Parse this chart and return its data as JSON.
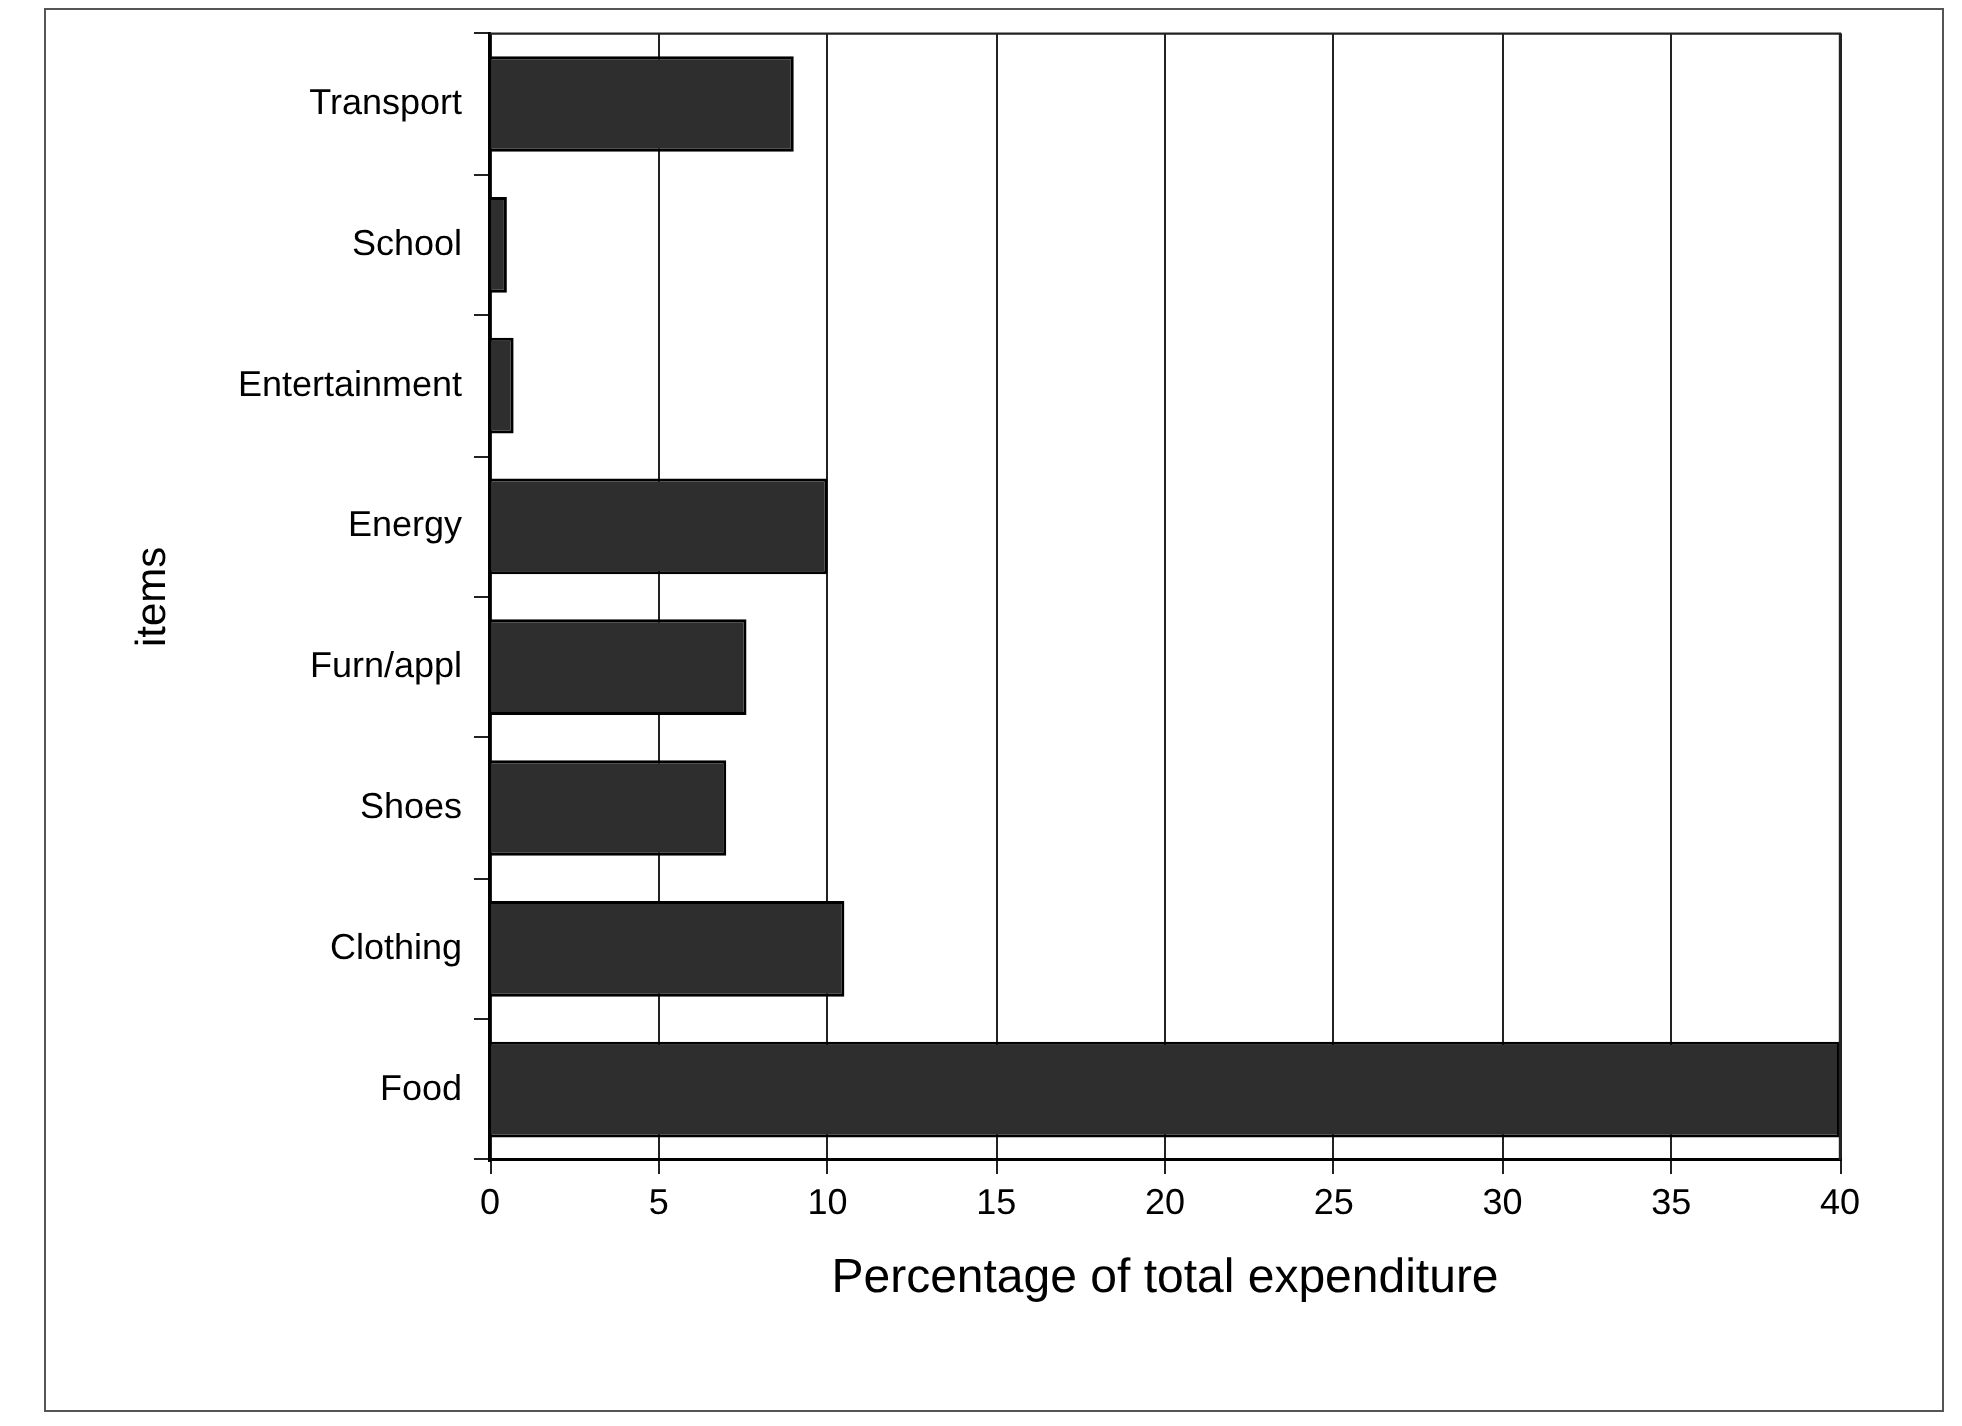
{
  "chart_data": {
    "type": "bar",
    "orientation": "horizontal",
    "categories": [
      "Transport",
      "School",
      "Entertainment",
      "Energy",
      "Furn/appl",
      "Shoes",
      "Clothing",
      "Food"
    ],
    "values": [
      9.0,
      0.5,
      0.7,
      10.0,
      7.6,
      7.0,
      10.5,
      40
    ],
    "color": "#2e2e2e",
    "xlabel": "Percentage of total expenditure",
    "ylabel": "items",
    "xlim": [
      0,
      40
    ],
    "xticks": [
      0,
      5,
      10,
      15,
      20,
      25,
      30,
      35,
      40
    ],
    "grid": "x"
  }
}
